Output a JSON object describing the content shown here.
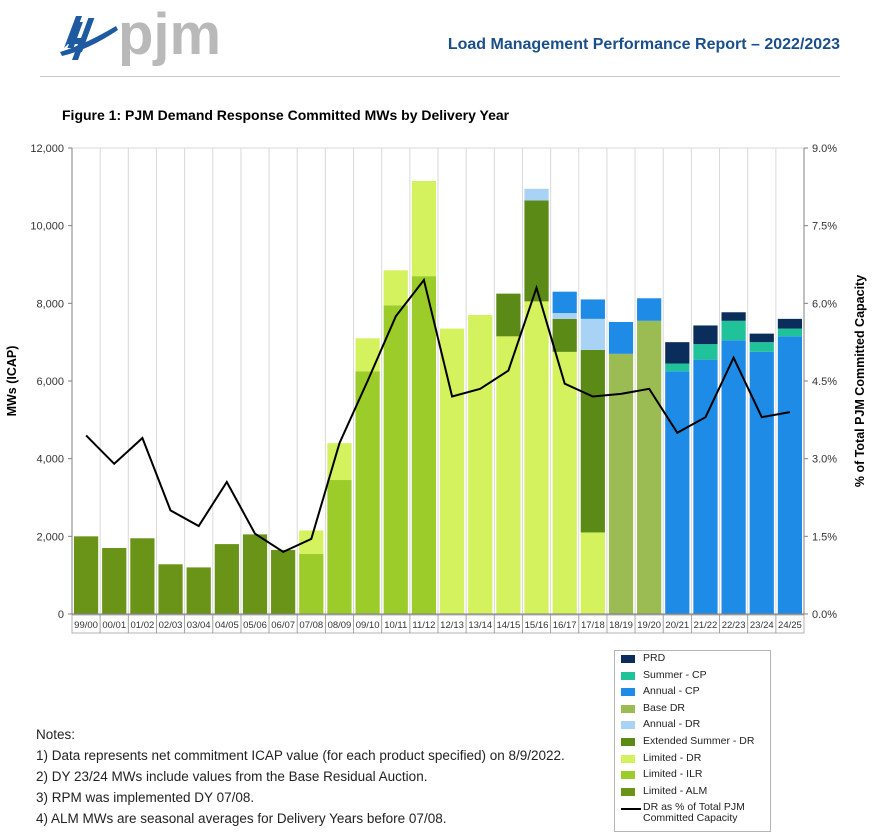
{
  "header": {
    "logo_text": "pjm",
    "report_title": "Load Management Performance Report – 2022/2023"
  },
  "figure_title": "Figure 1: PJM Demand Response Committed MWs by Delivery Year",
  "colors": {
    "PRD": "#0b2d5c",
    "Summer - CP": "#20c29a",
    "Annual - CP": "#1e8be6",
    "Base DR": "#9bbb53",
    "Annual - DR": "#a9d3f5",
    "Extended Summer - DR": "#5c8a16",
    "Limited - DR": "#d4f25e",
    "Limited - ILR": "#9ccc2a",
    "Limited - ALM": "#6a9418",
    "line": "#000000",
    "logo": "#1e5aa0",
    "logo_text": "#b9b9b9"
  },
  "chart_data": {
    "type": "bar",
    "stacked": true,
    "title": "Figure 1: PJM Demand Response Committed MWs by Delivery Year",
    "ylabel": "MWs (ICAP)",
    "y2label": "% of Total PJM Committed Capacity",
    "ylim": [
      0,
      12000
    ],
    "y2lim": [
      0,
      9.0
    ],
    "yticks": [
      "0",
      "2,000",
      "4,000",
      "6,000",
      "8,000",
      "10,000",
      "12,000"
    ],
    "y2ticks": [
      "0.0%",
      "1.5%",
      "3.0%",
      "4.5%",
      "6.0%",
      "7.5%",
      "9.0%"
    ],
    "categories": [
      "99/00",
      "00/01",
      "01/02",
      "02/03",
      "03/04",
      "04/05",
      "05/06",
      "06/07",
      "07/08",
      "08/09",
      "09/10",
      "10/11",
      "11/12",
      "12/13",
      "13/14",
      "14/15",
      "15/16",
      "16/17",
      "17/18",
      "18/19",
      "19/20",
      "20/21",
      "21/22",
      "22/23",
      "23/24",
      "24/25"
    ],
    "series": [
      {
        "name": "Limited - ALM",
        "values": [
          2000,
          1700,
          1950,
          1280,
          1200,
          1800,
          2050,
          1650,
          0,
          0,
          0,
          0,
          0,
          0,
          0,
          0,
          0,
          0,
          0,
          0,
          0,
          0,
          0,
          0,
          0,
          0
        ]
      },
      {
        "name": "Limited - ILR",
        "values": [
          0,
          0,
          0,
          0,
          0,
          0,
          0,
          0,
          1550,
          3450,
          6250,
          7950,
          8700,
          0,
          0,
          0,
          0,
          0,
          0,
          0,
          0,
          0,
          0,
          0,
          0,
          0
        ]
      },
      {
        "name": "Limited - DR",
        "values": [
          0,
          0,
          0,
          0,
          0,
          0,
          0,
          0,
          600,
          950,
          850,
          900,
          2450,
          7350,
          7700,
          7150,
          8050,
          6750,
          2100,
          0,
          0,
          0,
          0,
          0,
          0,
          0
        ]
      },
      {
        "name": "Extended Summer - DR",
        "values": [
          0,
          0,
          0,
          0,
          0,
          0,
          0,
          0,
          0,
          0,
          0,
          0,
          0,
          0,
          0,
          1100,
          2600,
          850,
          4700,
          0,
          0,
          0,
          0,
          0,
          0,
          0
        ]
      },
      {
        "name": "Annual - DR",
        "values": [
          0,
          0,
          0,
          0,
          0,
          0,
          0,
          0,
          0,
          0,
          0,
          0,
          0,
          0,
          0,
          0,
          300,
          150,
          800,
          0,
          0,
          0,
          0,
          0,
          0,
          0
        ]
      },
      {
        "name": "Base DR",
        "values": [
          0,
          0,
          0,
          0,
          0,
          0,
          0,
          0,
          0,
          0,
          0,
          0,
          0,
          0,
          0,
          0,
          0,
          0,
          0,
          6700,
          7550,
          0,
          0,
          0,
          0,
          0
        ]
      },
      {
        "name": "Annual - CP",
        "values": [
          0,
          0,
          0,
          0,
          0,
          0,
          0,
          0,
          0,
          0,
          0,
          0,
          0,
          0,
          0,
          0,
          0,
          550,
          500,
          820,
          580,
          6250,
          6550,
          7050,
          6750,
          7150
        ]
      },
      {
        "name": "Summer - CP",
        "values": [
          0,
          0,
          0,
          0,
          0,
          0,
          0,
          0,
          0,
          0,
          0,
          0,
          0,
          0,
          0,
          0,
          0,
          0,
          0,
          0,
          0,
          200,
          400,
          500,
          250,
          200
        ]
      },
      {
        "name": "PRD",
        "values": [
          0,
          0,
          0,
          0,
          0,
          0,
          0,
          0,
          0,
          0,
          0,
          0,
          0,
          0,
          0,
          0,
          0,
          0,
          0,
          0,
          0,
          550,
          480,
          220,
          220,
          250
        ]
      }
    ],
    "line": {
      "name": "DR as % of Total PJM Committed Capacity",
      "axis": "y2",
      "values": [
        3.45,
        2.9,
        3.4,
        2.0,
        1.7,
        2.55,
        1.55,
        1.2,
        1.45,
        3.3,
        4.5,
        5.75,
        6.45,
        4.2,
        4.35,
        4.7,
        6.3,
        4.45,
        4.2,
        4.25,
        4.35,
        3.5,
        3.8,
        4.95,
        3.8,
        3.9
      ]
    },
    "legend": [
      "PRD",
      "Summer - CP",
      "Annual - CP",
      "Base DR",
      "Annual - DR",
      "Extended Summer - DR",
      "Limited - DR",
      "Limited - ILR",
      "Limited - ALM",
      "DR as % of Total PJM Committed Capacity"
    ],
    "legend_position": "bottom-right"
  },
  "notes": {
    "heading": "Notes:",
    "items": [
      "1) Data represents net commitment ICAP value (for each product specified) on 8/9/2022.",
      "2) DY 23/24 MWs include values from the Base Residual Auction.",
      "3) RPM was implemented DY 07/08.",
      "4) ALM MWs are seasonal averages for Delivery Years before 07/08."
    ]
  }
}
